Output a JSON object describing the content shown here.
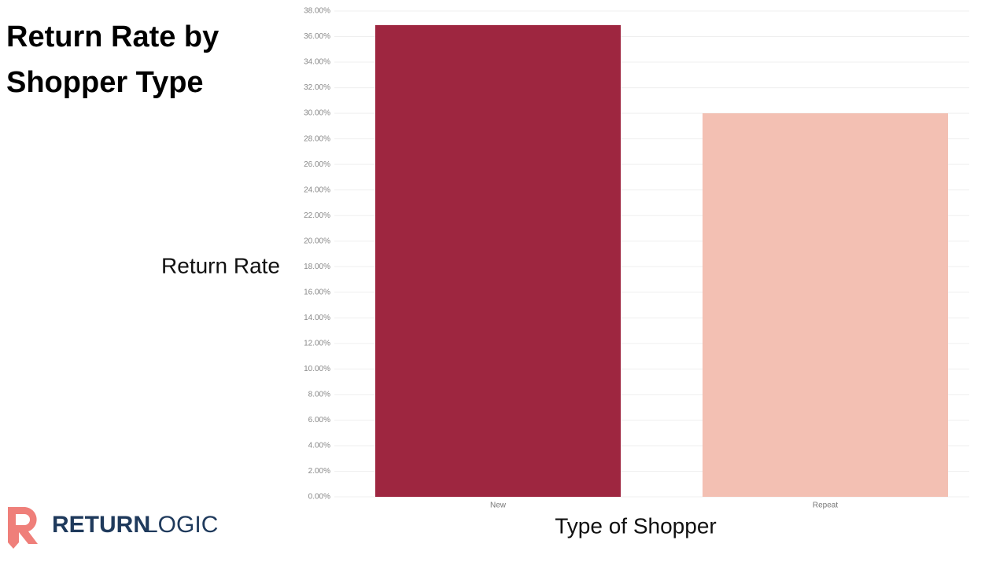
{
  "chart_data": {
    "type": "bar",
    "title": "Return Rate by Shopper Type",
    "y_label": "Return Rate",
    "x_label": "Type of Shopper",
    "categories": [
      "New",
      "Repeat"
    ],
    "values": [
      36.9,
      30.0
    ],
    "colors": [
      "#9e2640",
      "#f3c0b3"
    ],
    "ylim": [
      0,
      38
    ],
    "yticks": [
      {
        "value": 0,
        "label": "0.00%"
      },
      {
        "value": 2,
        "label": "2.00%"
      },
      {
        "value": 4,
        "label": "4.00%"
      },
      {
        "value": 6,
        "label": "6.00%"
      },
      {
        "value": 8,
        "label": "8.00%"
      },
      {
        "value": 10,
        "label": "10.00%"
      },
      {
        "value": 12,
        "label": "12.00%"
      },
      {
        "value": 14,
        "label": "14.00%"
      },
      {
        "value": 16,
        "label": "16.00%"
      },
      {
        "value": 18,
        "label": "18.00%"
      },
      {
        "value": 20,
        "label": "20.00%"
      },
      {
        "value": 22,
        "label": "22.00%"
      },
      {
        "value": 24,
        "label": "24.00%"
      },
      {
        "value": 26,
        "label": "26.00%"
      },
      {
        "value": 28,
        "label": "28.00%"
      },
      {
        "value": 30,
        "label": "30.00%"
      },
      {
        "value": 32,
        "label": "32.00%"
      },
      {
        "value": 34,
        "label": "34.00%"
      },
      {
        "value": 36,
        "label": "36.00%"
      },
      {
        "value": 38,
        "label": "38.00%"
      }
    ],
    "grid": true
  },
  "brand": {
    "bold": "RETURN",
    "light": "LOGIC"
  }
}
